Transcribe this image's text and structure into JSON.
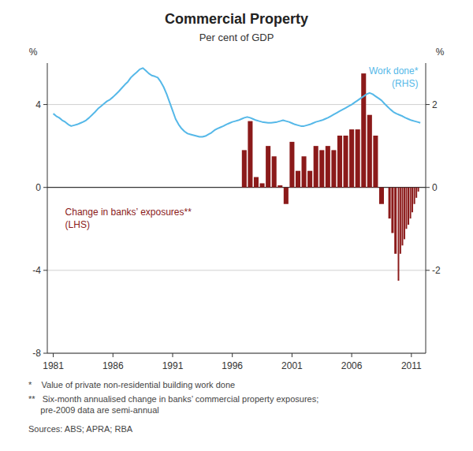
{
  "chart_data": {
    "type": "bar",
    "title": "Commercial Property",
    "subtitle": "Per cent of GDP",
    "footnotes": [
      "*    Value of private non-residential building work done",
      "**   Six-month annualised change in banks’ commercial property exposures;\n     pre-2009 data are semi-annual",
      "Sources: ABS; APRA; RBA"
    ],
    "y_label": "%",
    "y2_label": "%",
    "xlim": [
      1980.5,
      2012.2
    ],
    "xticks": [
      1981,
      1986,
      1991,
      1996,
      2001,
      2006,
      2011
    ],
    "ylim": [
      -8,
      6
    ],
    "yticks": [
      -8,
      -4,
      0,
      4
    ],
    "y2lim": [
      -4,
      3
    ],
    "y2ticks": [
      -2,
      0,
      2
    ],
    "grid": true,
    "series": [
      {
        "name": "Change in banks’ exposures**\n(LHS)",
        "type": "bar",
        "color": "#8b1a1a",
        "x": [
          1997.0,
          1997.5,
          1998.0,
          1998.5,
          1999.0,
          1999.5,
          2000.0,
          2000.5,
          2001.0,
          2001.5,
          2002.0,
          2002.5,
          2003.0,
          2003.5,
          2004.0,
          2004.5,
          2005.0,
          2005.5,
          2006.0,
          2006.5,
          2007.0,
          2007.5,
          2008.0,
          2008.5,
          2009.17,
          2009.42,
          2009.67,
          2009.92,
          2010.08,
          2010.25,
          2010.42,
          2010.58,
          2010.75,
          2010.92,
          2011.08,
          2011.25,
          2011.42,
          2011.58
        ],
        "values": [
          1.8,
          3.2,
          0.5,
          0.2,
          2.0,
          1.5,
          0.1,
          -0.8,
          2.2,
          0.8,
          1.5,
          0.8,
          2.0,
          1.8,
          2.0,
          1.8,
          2.5,
          2.5,
          2.8,
          2.8,
          5.5,
          3.5,
          2.5,
          -0.8,
          -1.5,
          -2.2,
          -3.2,
          -4.5,
          -3.2,
          -2.8,
          -2.5,
          -2.0,
          -1.8,
          -1.5,
          -1.2,
          -0.8,
          -0.5,
          -0.2
        ]
      },
      {
        "name": "Work done*\n(RHS)",
        "type": "line",
        "color": "#55b8e8",
        "axis": "y2",
        "x": [
          1981.0,
          1981.25,
          1981.5,
          1981.75,
          1982.0,
          1982.25,
          1982.5,
          1982.75,
          1983.0,
          1983.25,
          1983.5,
          1983.75,
          1984.0,
          1984.25,
          1984.5,
          1984.75,
          1985.0,
          1985.25,
          1985.5,
          1985.75,
          1986.0,
          1986.25,
          1986.5,
          1986.75,
          1987.0,
          1987.25,
          1987.5,
          1987.75,
          1988.0,
          1988.25,
          1988.5,
          1988.75,
          1989.0,
          1989.25,
          1989.5,
          1989.75,
          1990.0,
          1990.25,
          1990.5,
          1990.75,
          1991.0,
          1991.25,
          1991.5,
          1991.75,
          1992.0,
          1992.25,
          1992.5,
          1992.75,
          1993.0,
          1993.25,
          1993.5,
          1993.75,
          1994.0,
          1994.25,
          1994.5,
          1994.75,
          1995.0,
          1995.25,
          1995.5,
          1995.75,
          1996.0,
          1996.25,
          1996.5,
          1996.75,
          1997.0,
          1997.25,
          1997.5,
          1997.75,
          1998.0,
          1998.25,
          1998.5,
          1998.75,
          1999.0,
          1999.25,
          1999.5,
          1999.75,
          2000.0,
          2000.25,
          2000.5,
          2000.75,
          2001.0,
          2001.25,
          2001.5,
          2001.75,
          2002.0,
          2002.25,
          2002.5,
          2002.75,
          2003.0,
          2003.25,
          2003.5,
          2003.75,
          2004.0,
          2004.25,
          2004.5,
          2004.75,
          2005.0,
          2005.25,
          2005.5,
          2005.75,
          2006.0,
          2006.25,
          2006.5,
          2006.75,
          2007.0,
          2007.25,
          2007.5,
          2007.75,
          2008.0,
          2008.25,
          2008.5,
          2008.75,
          2009.0,
          2009.25,
          2009.5,
          2009.75,
          2010.0,
          2010.25,
          2010.5,
          2010.75,
          2011.0,
          2011.25,
          2011.5,
          2011.75
        ],
        "values": [
          1.78,
          1.72,
          1.68,
          1.62,
          1.58,
          1.52,
          1.48,
          1.5,
          1.52,
          1.55,
          1.58,
          1.62,
          1.68,
          1.75,
          1.82,
          1.9,
          1.96,
          2.02,
          2.08,
          2.12,
          2.18,
          2.25,
          2.32,
          2.4,
          2.48,
          2.55,
          2.65,
          2.72,
          2.78,
          2.85,
          2.88,
          2.82,
          2.75,
          2.7,
          2.68,
          2.65,
          2.55,
          2.42,
          2.25,
          2.05,
          1.85,
          1.65,
          1.52,
          1.42,
          1.35,
          1.3,
          1.28,
          1.26,
          1.24,
          1.22,
          1.22,
          1.24,
          1.28,
          1.32,
          1.38,
          1.42,
          1.45,
          1.48,
          1.52,
          1.55,
          1.58,
          1.6,
          1.62,
          1.65,
          1.68,
          1.7,
          1.68,
          1.65,
          1.62,
          1.6,
          1.58,
          1.57,
          1.56,
          1.56,
          1.57,
          1.58,
          1.6,
          1.62,
          1.6,
          1.58,
          1.55,
          1.52,
          1.5,
          1.48,
          1.48,
          1.5,
          1.52,
          1.55,
          1.58,
          1.6,
          1.62,
          1.65,
          1.68,
          1.72,
          1.76,
          1.8,
          1.84,
          1.88,
          1.92,
          1.96,
          2.0,
          2.05,
          2.1,
          2.15,
          2.2,
          2.25,
          2.28,
          2.25,
          2.2,
          2.15,
          2.1,
          2.02,
          1.95,
          1.88,
          1.82,
          1.78,
          1.75,
          1.72,
          1.68,
          1.65,
          1.62,
          1.6,
          1.58,
          1.56
        ]
      }
    ]
  }
}
